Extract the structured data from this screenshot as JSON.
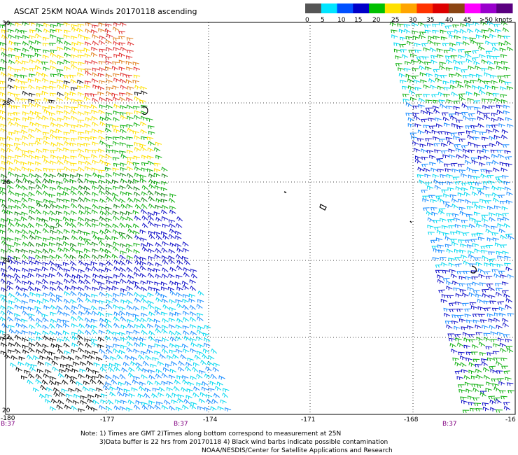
{
  "title": "ASCAT 25KM NOAA Winds 20170118 ascending",
  "scale": {
    "labels": [
      "0",
      "5",
      "10",
      "15",
      "20",
      "25",
      "30",
      "35",
      "40",
      "45",
      ">50 knots"
    ],
    "colors": [
      "#555555",
      "#00e5ff",
      "#0050ff",
      "#0000c8",
      "#00c000",
      "#ffe000",
      "#ffa500",
      "#ff3300",
      "#dd0000",
      "#8b4513",
      "#ff00ff",
      "#9900cc",
      "#5a0080"
    ]
  },
  "y_labels": [
    "30",
    "28",
    "26",
    "24",
    "22",
    "20"
  ],
  "x_labels": [
    "-180",
    "-177",
    "-174",
    "-171",
    "-168",
    "-16"
  ],
  "time_labels": [
    "B:37",
    "B:37",
    "B:37"
  ],
  "notes": {
    "line1": "Note: 1) Times are GMT 2)Times along bottom correspond to measurement at 25N",
    "line2": "3)Data buffer is 22 hrs from 20170118 4) Black wind barbs indicate possible contamination",
    "line3": "NOAA/NESDIS/Center for Satellite Applications and Research"
  },
  "colors": {
    "black_barb": "#111111",
    "cyan": "#00d8f0",
    "light_blue": "#1a8cff",
    "blue": "#1010c8",
    "green": "#10b010",
    "dark_green": "#108010",
    "yellow": "#ffe000",
    "orange": "#e08020",
    "red": "#e03030"
  }
}
